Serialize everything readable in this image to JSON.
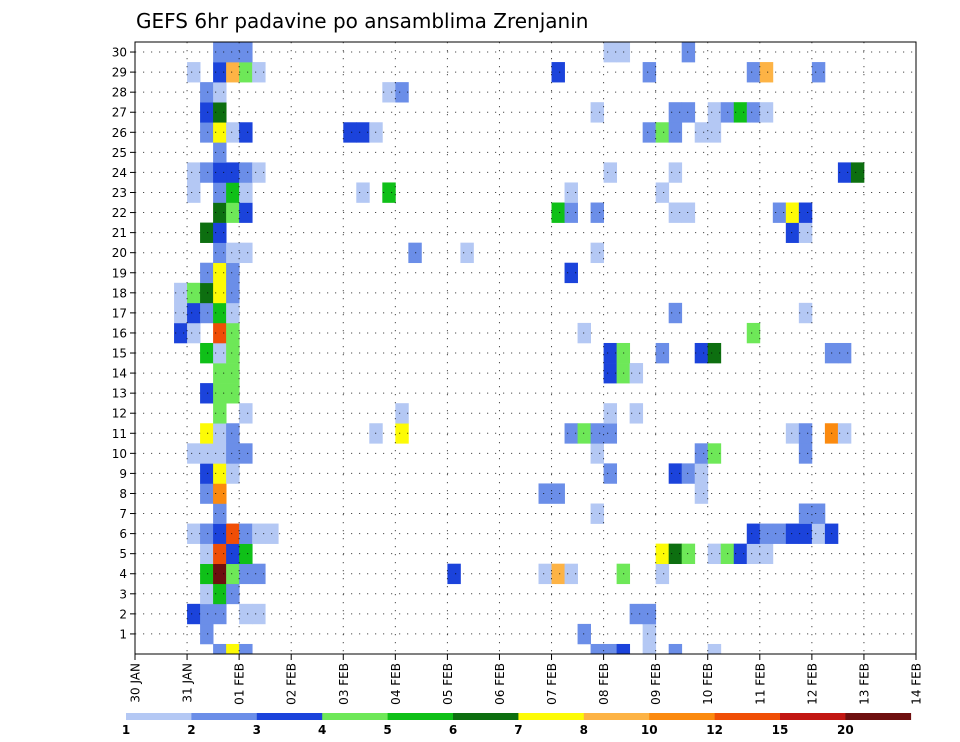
{
  "chart_data": {
    "type": "heatmap",
    "title": "GEFS 6hr padavine po ansamblima Zrenjanin",
    "xlabel": "",
    "ylabel": "",
    "x_ticks": [
      "30 JAN",
      "31 JAN",
      "01 FEB",
      "02 FEB",
      "03 FEB",
      "04 FEB",
      "05 FEB",
      "06 FEB",
      "07 FEB",
      "08 FEB",
      "09 FEB",
      "10 FEB",
      "11 FEB",
      "12 FEB",
      "13 FEB",
      "14 FEB"
    ],
    "y_ticks": [
      1,
      2,
      3,
      4,
      5,
      6,
      7,
      8,
      9,
      10,
      11,
      12,
      13,
      14,
      15,
      16,
      17,
      18,
      19,
      20,
      21,
      22,
      23,
      24,
      25,
      26,
      27,
      28,
      29,
      30
    ],
    "ylim": [
      0,
      30
    ],
    "xlim_days": [
      0,
      15
    ],
    "x_step_hours": 6,
    "grid": true,
    "legend": {
      "placement": "bottom",
      "bin_labels": [
        "1",
        "2",
        "3",
        "4",
        "5",
        "6",
        "7",
        "8",
        "10",
        "12",
        "15",
        "20"
      ],
      "bin_colors": [
        "#b4c8f4",
        "#6b8ee8",
        "#1b43db",
        "#6ee858",
        "#0fc018",
        "#0d6f10",
        "#fdfb06",
        "#fdb345",
        "#fb8a0f",
        "#f04e06",
        "#c21612",
        "#6e0f0f"
      ]
    },
    "members": [
      {
        "member": 1,
        "cells": [
          [
            5,
            1
          ],
          [
            34,
            1
          ],
          [
            39,
            0
          ]
        ]
      },
      {
        "member": 2,
        "cells": [
          [
            4,
            2
          ],
          [
            5,
            1
          ],
          [
            6,
            1
          ],
          [
            8,
            0
          ],
          [
            9,
            0
          ],
          [
            38,
            1
          ],
          [
            39,
            1
          ]
        ]
      },
      {
        "member": 3,
        "cells": [
          [
            5,
            0
          ],
          [
            6,
            4
          ],
          [
            7,
            1
          ]
        ]
      },
      {
        "member": 4,
        "cells": [
          [
            5,
            4
          ],
          [
            6,
            11
          ],
          [
            7,
            3
          ],
          [
            8,
            1
          ],
          [
            9,
            1
          ],
          [
            24,
            2
          ],
          [
            31,
            0
          ],
          [
            32,
            7
          ],
          [
            33,
            0
          ],
          [
            37,
            3
          ],
          [
            40,
            0
          ]
        ]
      },
      {
        "member": 5,
        "cells": [
          [
            5,
            0
          ],
          [
            6,
            9
          ],
          [
            7,
            2
          ],
          [
            8,
            4
          ],
          [
            40,
            6
          ],
          [
            41,
            5
          ],
          [
            42,
            3
          ],
          [
            44,
            0
          ],
          [
            45,
            3
          ],
          [
            46,
            2
          ],
          [
            47,
            0
          ],
          [
            48,
            0
          ]
        ]
      },
      {
        "member": 6,
        "cells": [
          [
            4,
            0
          ],
          [
            5,
            1
          ],
          [
            6,
            2
          ],
          [
            7,
            9
          ],
          [
            8,
            1
          ],
          [
            9,
            0
          ],
          [
            10,
            0
          ],
          [
            47,
            2
          ],
          [
            48,
            1
          ],
          [
            49,
            1
          ],
          [
            50,
            2
          ],
          [
            51,
            2
          ],
          [
            52,
            0
          ],
          [
            53,
            2
          ]
        ]
      },
      {
        "member": 7,
        "cells": [
          [
            6,
            1
          ],
          [
            35,
            0
          ],
          [
            51,
            1
          ],
          [
            52,
            1
          ]
        ]
      },
      {
        "member": 8,
        "cells": [
          [
            5,
            1
          ],
          [
            6,
            8
          ],
          [
            31,
            1
          ],
          [
            32,
            1
          ],
          [
            43,
            0
          ]
        ]
      },
      {
        "member": 9,
        "cells": [
          [
            5,
            2
          ],
          [
            6,
            6
          ],
          [
            7,
            0
          ],
          [
            36,
            1
          ],
          [
            41,
            2
          ],
          [
            42,
            1
          ],
          [
            43,
            0
          ]
        ]
      },
      {
        "member": 10,
        "cells": [
          [
            4,
            0
          ],
          [
            5,
            0
          ],
          [
            6,
            0
          ],
          [
            7,
            1
          ],
          [
            8,
            1
          ],
          [
            35,
            0
          ],
          [
            43,
            1
          ],
          [
            44,
            3
          ],
          [
            51,
            1
          ]
        ]
      },
      {
        "member": 11,
        "cells": [
          [
            5,
            6
          ],
          [
            6,
            0
          ],
          [
            7,
            1
          ],
          [
            18,
            0
          ],
          [
            20,
            6
          ],
          [
            33,
            1
          ],
          [
            34,
            3
          ],
          [
            35,
            1
          ],
          [
            36,
            1
          ],
          [
            50,
            0
          ],
          [
            51,
            1
          ],
          [
            53,
            8
          ],
          [
            54,
            0
          ]
        ]
      },
      {
        "member": 12,
        "cells": [
          [
            6,
            3
          ],
          [
            8,
            0
          ],
          [
            20,
            0
          ],
          [
            36,
            0
          ],
          [
            38,
            0
          ]
        ]
      },
      {
        "member": 13,
        "cells": [
          [
            5,
            2
          ],
          [
            6,
            3
          ],
          [
            7,
            3
          ]
        ]
      },
      {
        "member": 14,
        "cells": [
          [
            6,
            3
          ],
          [
            7,
            3
          ],
          [
            36,
            2
          ],
          [
            37,
            3
          ],
          [
            38,
            0
          ]
        ]
      },
      {
        "member": 15,
        "cells": [
          [
            5,
            4
          ],
          [
            6,
            0
          ],
          [
            7,
            3
          ],
          [
            36,
            2
          ],
          [
            37,
            3
          ],
          [
            40,
            1
          ],
          [
            43,
            2
          ],
          [
            44,
            5
          ],
          [
            53,
            1
          ],
          [
            54,
            1
          ]
        ]
      },
      {
        "member": 16,
        "cells": [
          [
            3,
            2
          ],
          [
            4,
            0
          ],
          [
            6,
            9
          ],
          [
            7,
            3
          ],
          [
            34,
            0
          ],
          [
            47,
            3
          ]
        ]
      },
      {
        "member": 17,
        "cells": [
          [
            3,
            0
          ],
          [
            4,
            2
          ],
          [
            5,
            1
          ],
          [
            6,
            4
          ],
          [
            7,
            0
          ],
          [
            41,
            1
          ],
          [
            51,
            0
          ]
        ]
      },
      {
        "member": 18,
        "cells": [
          [
            3,
            0
          ],
          [
            4,
            3
          ],
          [
            5,
            5
          ],
          [
            6,
            6
          ],
          [
            7,
            1
          ]
        ]
      },
      {
        "member": 19,
        "cells": [
          [
            5,
            1
          ],
          [
            6,
            6
          ],
          [
            7,
            1
          ],
          [
            33,
            2
          ]
        ]
      },
      {
        "member": 20,
        "cells": [
          [
            6,
            1
          ],
          [
            7,
            0
          ],
          [
            8,
            0
          ],
          [
            21,
            1
          ],
          [
            25,
            0
          ],
          [
            35,
            0
          ]
        ]
      },
      {
        "member": 21,
        "cells": [
          [
            5,
            5
          ],
          [
            6,
            2
          ],
          [
            50,
            2
          ],
          [
            51,
            0
          ]
        ]
      },
      {
        "member": 22,
        "cells": [
          [
            6,
            5
          ],
          [
            7,
            3
          ],
          [
            8,
            2
          ],
          [
            32,
            4
          ],
          [
            33,
            1
          ],
          [
            35,
            1
          ],
          [
            41,
            0
          ],
          [
            42,
            0
          ],
          [
            49,
            1
          ],
          [
            50,
            6
          ],
          [
            51,
            2
          ]
        ]
      },
      {
        "member": 23,
        "cells": [
          [
            4,
            0
          ],
          [
            6,
            1
          ],
          [
            7,
            4
          ],
          [
            8,
            0
          ],
          [
            17,
            0
          ],
          [
            19,
            4
          ],
          [
            33,
            0
          ],
          [
            40,
            0
          ]
        ]
      },
      {
        "member": 24,
        "cells": [
          [
            4,
            0
          ],
          [
            5,
            1
          ],
          [
            6,
            2
          ],
          [
            7,
            2
          ],
          [
            8,
            1
          ],
          [
            9,
            0
          ],
          [
            36,
            0
          ],
          [
            41,
            0
          ],
          [
            54,
            2
          ],
          [
            55,
            5
          ]
        ]
      },
      {
        "member": 25,
        "cells": [
          [
            6,
            1
          ]
        ]
      },
      {
        "member": 26,
        "cells": [
          [
            5,
            1
          ],
          [
            6,
            6
          ],
          [
            7,
            0
          ],
          [
            8,
            2
          ],
          [
            16,
            2
          ],
          [
            17,
            2
          ],
          [
            18,
            0
          ],
          [
            39,
            1
          ],
          [
            40,
            3
          ],
          [
            41,
            1
          ],
          [
            43,
            0
          ],
          [
            44,
            0
          ]
        ]
      },
      {
        "member": 27,
        "cells": [
          [
            5,
            2
          ],
          [
            6,
            5
          ],
          [
            35,
            0
          ],
          [
            41,
            1
          ],
          [
            42,
            1
          ],
          [
            44,
            0
          ],
          [
            45,
            1
          ],
          [
            46,
            4
          ],
          [
            47,
            1
          ],
          [
            48,
            0
          ]
        ]
      },
      {
        "member": 28,
        "cells": [
          [
            5,
            1
          ],
          [
            6,
            0
          ],
          [
            19,
            0
          ],
          [
            20,
            1
          ]
        ]
      },
      {
        "member": 29,
        "cells": [
          [
            4,
            0
          ],
          [
            6,
            2
          ],
          [
            7,
            7
          ],
          [
            8,
            3
          ],
          [
            9,
            0
          ],
          [
            32,
            2
          ],
          [
            39,
            1
          ],
          [
            47,
            1
          ],
          [
            48,
            7
          ],
          [
            52,
            1
          ]
        ]
      },
      {
        "member": 30,
        "cells": [
          [
            6,
            1
          ],
          [
            7,
            1
          ],
          [
            8,
            1
          ],
          [
            36,
            0
          ],
          [
            37,
            0
          ],
          [
            42,
            1
          ]
        ]
      },
      {
        "member": 0,
        "cells": [
          [
            6,
            1
          ],
          [
            7,
            6
          ],
          [
            8,
            1
          ],
          [
            35,
            1
          ],
          [
            36,
            1
          ],
          [
            37,
            2
          ],
          [
            39,
            0
          ],
          [
            41,
            1
          ],
          [
            44,
            0
          ]
        ]
      }
    ]
  }
}
